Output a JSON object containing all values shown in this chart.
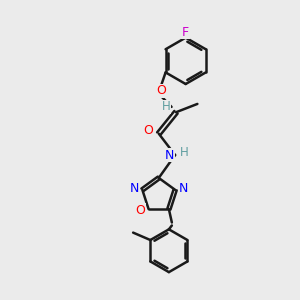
{
  "background_color": "#ebebeb",
  "atom_colors": {
    "C": "#000000",
    "H": "#5f9ea0",
    "N": "#0000ff",
    "O": "#ff0000",
    "F": "#cc00cc"
  },
  "bond_color": "#1a1a1a",
  "bond_width": 1.8,
  "figsize": [
    3.0,
    3.0
  ],
  "dpi": 100
}
